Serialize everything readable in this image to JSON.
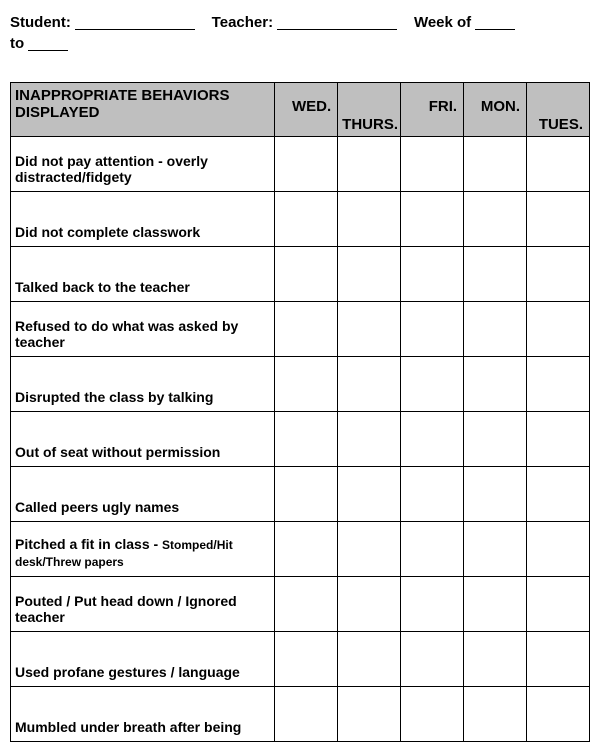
{
  "header": {
    "student_label": "Student:",
    "teacher_label": "Teacher:",
    "week_label": "Week of",
    "to_label": "to"
  },
  "table": {
    "header_label": "INAPPROPRIATE BEHAVIORS DISPLAYED",
    "days": [
      "WED.",
      "THURS.",
      "FRI.",
      "MON.",
      "TUES."
    ],
    "day_alignment": [
      "top",
      "bottom",
      "top",
      "top",
      "bottom"
    ],
    "rows": [
      {
        "text": "Did not pay attention - overly distracted/fidgety"
      },
      {
        "text": "Did not complete classwork"
      },
      {
        "text": "Talked back to the teacher"
      },
      {
        "text": "Refused to do what was asked by teacher"
      },
      {
        "text": "Disrupted the class by talking"
      },
      {
        "text": "Out of seat without permission"
      },
      {
        "text": "Called peers ugly names"
      },
      {
        "text": "Pitched a fit in class - ",
        "sub": "Stomped/Hit desk/Threw papers"
      },
      {
        "text": "Pouted / Put head down / Ignored teacher"
      },
      {
        "text": "Used profane gestures / language"
      },
      {
        "text": "Mumbled under breath after being"
      }
    ]
  },
  "style": {
    "header_bg": "#bfbfbf",
    "border_color": "#000000",
    "blank_widths": {
      "student": 120,
      "teacher": 120,
      "week1": 40,
      "week2": 40
    }
  }
}
